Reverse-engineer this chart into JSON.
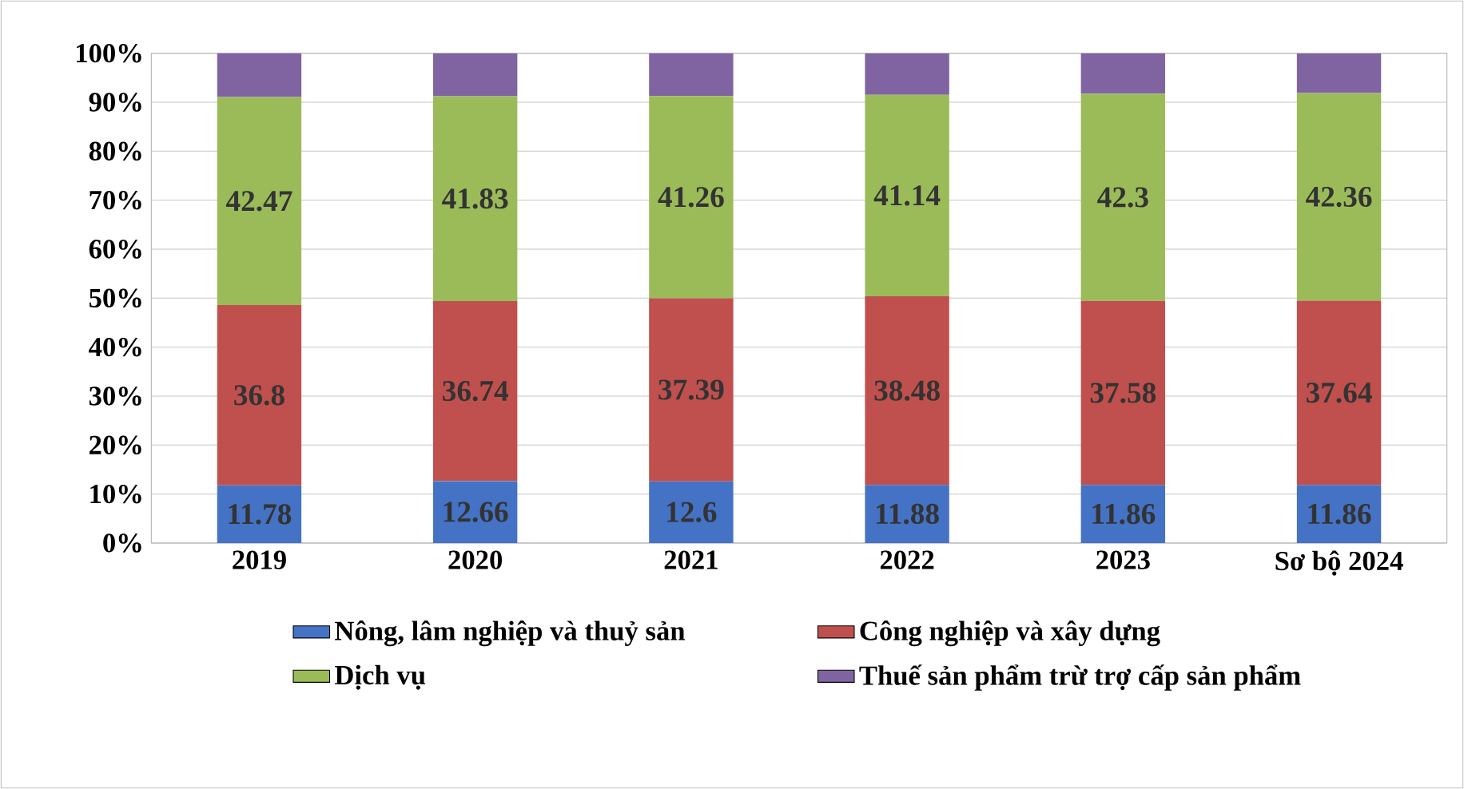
{
  "chart_data": {
    "type": "bar",
    "stacked": true,
    "categories": [
      "2019",
      "2020",
      "2021",
      "2022",
      "2023",
      "Sơ bộ 2024"
    ],
    "series": [
      {
        "name": "Nông, lâm nghiệp và thuỷ sản",
        "color": "#4472c4",
        "values": [
          11.78,
          12.66,
          12.6,
          11.88,
          11.86,
          11.86
        ],
        "value_labels": [
          "11.78",
          "12.66",
          "12.6",
          "11.88",
          "11.86",
          "11.86"
        ]
      },
      {
        "name": "Công nghiệp và xây dựng",
        "color": "#c0504d",
        "values": [
          36.8,
          36.74,
          37.39,
          38.48,
          37.58,
          37.64
        ],
        "value_labels": [
          "36.8",
          "36.74",
          "37.39",
          "38.48",
          "37.58",
          "37.64"
        ]
      },
      {
        "name": "Dịch vụ",
        "color": "#9bbb59",
        "values": [
          42.47,
          41.83,
          41.26,
          41.14,
          42.3,
          42.36
        ],
        "value_labels": [
          "42.47",
          "41.83",
          "41.26",
          "41.14",
          "42.3",
          "42.36"
        ]
      },
      {
        "name": "Thuế sản phẩm trừ trợ cấp sản phẩm",
        "color": "#8064a2",
        "values": [
          9.0,
          8.8,
          8.8,
          8.5,
          8.3,
          8.1
        ],
        "value_labels": [
          null,
          null,
          null,
          null,
          null,
          null
        ]
      }
    ],
    "ylim": [
      0,
      100
    ],
    "yticks": [
      {
        "value": 0,
        "label": "0%"
      },
      {
        "value": 10,
        "label": "10%"
      },
      {
        "value": 20,
        "label": "20%"
      },
      {
        "value": 30,
        "label": "30%"
      },
      {
        "value": 40,
        "label": "40%"
      },
      {
        "value": 50,
        "label": "50%"
      },
      {
        "value": 60,
        "label": "60%"
      },
      {
        "value": 70,
        "label": "70%"
      },
      {
        "value": 80,
        "label": "80%"
      },
      {
        "value": 90,
        "label": "90%"
      },
      {
        "value": 100,
        "label": "100%"
      }
    ],
    "grid": true,
    "legend": "bottom"
  }
}
